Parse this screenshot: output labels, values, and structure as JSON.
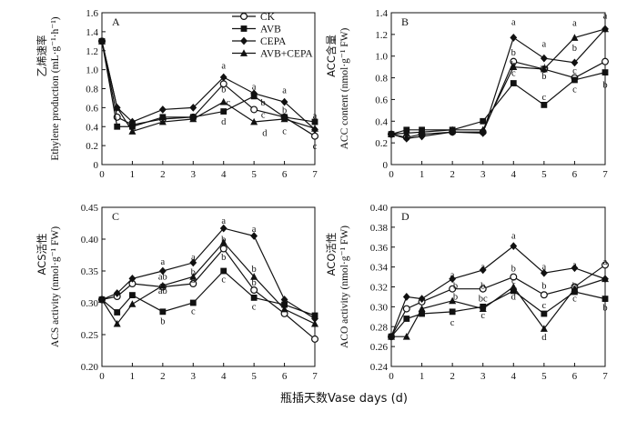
{
  "figure": {
    "x_axis_label": "瓶插天数Vase days (d)",
    "legend": [
      {
        "name": "CK",
        "marker": "circle-open"
      },
      {
        "name": "AVB",
        "marker": "square"
      },
      {
        "name": "CEPA",
        "marker": "diamond"
      },
      {
        "name": "AVB+CEPA",
        "marker": "triangle"
      }
    ]
  },
  "chart_data": [
    {
      "type": "line",
      "panel": "A",
      "ylabel_cn": "乙烯速率",
      "ylabel": "Ethylene production (mL·g⁻¹·h⁻¹)",
      "x": [
        0,
        0.5,
        1,
        2,
        3,
        4,
        5,
        6,
        7
      ],
      "xticks": [
        0,
        1,
        2,
        3,
        4,
        5,
        6,
        7
      ],
      "ylim": [
        0,
        1.6
      ],
      "yticks": [
        "0",
        "0.2",
        "0.4",
        "0.6",
        "0.8",
        "1.0",
        "1.2",
        "1.4",
        "1.6"
      ],
      "series": [
        {
          "name": "CK",
          "values": [
            1.3,
            0.5,
            0.42,
            0.48,
            0.5,
            0.85,
            0.58,
            0.5,
            0.3
          ]
        },
        {
          "name": "AVB",
          "values": [
            1.3,
            0.4,
            0.4,
            0.5,
            0.5,
            0.56,
            0.72,
            0.5,
            0.45
          ]
        },
        {
          "name": "CEPA",
          "values": [
            1.3,
            0.6,
            0.45,
            0.58,
            0.6,
            0.92,
            0.75,
            0.66,
            0.37
          ]
        },
        {
          "name": "AVB+CEPA",
          "values": [
            1.3,
            0.6,
            0.35,
            0.45,
            0.48,
            0.66,
            0.45,
            0.48,
            0.38
          ]
        }
      ],
      "annotations": [
        {
          "x": 4,
          "y": 1.05,
          "text": "a"
        },
        {
          "x": 4,
          "y": 0.8,
          "text": "b"
        },
        {
          "x": 4.15,
          "y": 0.66,
          "text": "c"
        },
        {
          "x": 4,
          "y": 0.46,
          "text": "d"
        },
        {
          "x": 5.3,
          "y": 0.66,
          "text": "b"
        },
        {
          "x": 5,
          "y": 0.83,
          "text": "a"
        },
        {
          "x": 5.3,
          "y": 0.53,
          "text": "c"
        },
        {
          "x": 5.35,
          "y": 0.34,
          "text": "d"
        },
        {
          "x": 6,
          "y": 0.79,
          "text": "a"
        },
        {
          "x": 6,
          "y": 0.58,
          "text": "b"
        },
        {
          "x": 6,
          "y": 0.36,
          "text": "c"
        },
        {
          "x": 7,
          "y": 0.52,
          "text": "a"
        },
        {
          "x": 7,
          "y": 0.2,
          "text": "c"
        }
      ]
    },
    {
      "type": "line",
      "panel": "B",
      "ylabel_cn": "ACC含量",
      "ylabel": "ACC content (nmol·g⁻¹ FW)",
      "x": [
        0,
        0.5,
        1,
        2,
        3,
        4,
        5,
        6,
        7
      ],
      "xticks": [
        0,
        1,
        2,
        3,
        4,
        5,
        6,
        7
      ],
      "ylim": [
        0,
        1.4
      ],
      "yticks": [
        "0",
        "0.2",
        "0.4",
        "0.6",
        "0.8",
        "1.0",
        "1.2",
        "1.4"
      ],
      "series": [
        {
          "name": "CK",
          "values": [
            0.28,
            0.25,
            0.28,
            0.3,
            0.3,
            0.95,
            0.88,
            0.8,
            0.95
          ]
        },
        {
          "name": "AVB",
          "values": [
            0.28,
            0.32,
            0.32,
            0.32,
            0.4,
            0.75,
            0.55,
            0.78,
            0.85
          ]
        },
        {
          "name": "CEPA",
          "values": [
            0.28,
            0.24,
            0.26,
            0.3,
            0.29,
            1.17,
            0.98,
            0.94,
            1.25
          ]
        },
        {
          "name": "AVB+CEPA",
          "values": [
            0.28,
            0.29,
            0.3,
            0.32,
            0.32,
            0.9,
            0.88,
            1.17,
            1.25
          ]
        }
      ],
      "annotations": [
        {
          "x": 4,
          "y": 1.32,
          "text": "a"
        },
        {
          "x": 4,
          "y": 1.04,
          "text": "b"
        },
        {
          "x": 4,
          "y": 0.93,
          "text": "b"
        },
        {
          "x": 4,
          "y": 0.85,
          "text": "c"
        },
        {
          "x": 5,
          "y": 1.12,
          "text": "a"
        },
        {
          "x": 5,
          "y": 0.9,
          "text": "ab"
        },
        {
          "x": 5,
          "y": 0.82,
          "text": "b"
        },
        {
          "x": 5,
          "y": 0.63,
          "text": "c"
        },
        {
          "x": 6,
          "y": 1.31,
          "text": "a"
        },
        {
          "x": 6,
          "y": 1.08,
          "text": "b"
        },
        {
          "x": 6,
          "y": 0.87,
          "text": "c"
        },
        {
          "x": 6,
          "y": 0.7,
          "text": "c"
        },
        {
          "x": 7,
          "y": 1.38,
          "text": "a"
        },
        {
          "x": 7,
          "y": 0.74,
          "text": "b"
        }
      ]
    },
    {
      "type": "line",
      "panel": "C",
      "ylabel_cn": "ACS活性",
      "ylabel": "ACS activity (nmol·g⁻¹ FW)",
      "x": [
        0,
        0.5,
        1,
        2,
        3,
        4,
        5,
        6,
        7
      ],
      "xticks": [
        0,
        1,
        2,
        3,
        4,
        5,
        6,
        7
      ],
      "ylim": [
        0.2,
        0.45
      ],
      "yticks": [
        "0.20",
        "0.25",
        "0.30",
        "0.35",
        "0.40",
        "0.45"
      ],
      "series": [
        {
          "name": "CK",
          "values": [
            0.305,
            0.31,
            0.33,
            0.325,
            0.33,
            0.385,
            0.32,
            0.283,
            0.243
          ]
        },
        {
          "name": "AVB",
          "values": [
            0.305,
            0.285,
            0.312,
            0.286,
            0.3,
            0.35,
            0.308,
            0.297,
            0.28
          ]
        },
        {
          "name": "CEPA",
          "values": [
            0.305,
            0.315,
            0.338,
            0.35,
            0.363,
            0.417,
            0.405,
            0.305,
            0.275
          ]
        },
        {
          "name": "AVB+CEPA",
          "values": [
            0.305,
            0.267,
            0.298,
            0.327,
            0.341,
            0.395,
            0.341,
            0.29,
            0.267
          ]
        }
      ],
      "annotations": [
        {
          "x": 2,
          "y": 0.366,
          "text": "a"
        },
        {
          "x": 2,
          "y": 0.342,
          "text": "ab"
        },
        {
          "x": 2,
          "y": 0.32,
          "text": "ab"
        },
        {
          "x": 2,
          "y": 0.272,
          "text": "b"
        },
        {
          "x": 3,
          "y": 0.373,
          "text": "a"
        },
        {
          "x": 3,
          "y": 0.349,
          "text": "b"
        },
        {
          "x": 3,
          "y": 0.337,
          "text": "b"
        },
        {
          "x": 3,
          "y": 0.288,
          "text": "c"
        },
        {
          "x": 4,
          "y": 0.43,
          "text": "a"
        },
        {
          "x": 4,
          "y": 0.401,
          "text": "b"
        },
        {
          "x": 4,
          "y": 0.373,
          "text": "b"
        },
        {
          "x": 4,
          "y": 0.338,
          "text": "c"
        },
        {
          "x": 5,
          "y": 0.417,
          "text": "a"
        },
        {
          "x": 5,
          "y": 0.354,
          "text": "b"
        },
        {
          "x": 5,
          "y": 0.333,
          "text": "b"
        },
        {
          "x": 5,
          "y": 0.295,
          "text": "c"
        }
      ]
    },
    {
      "type": "line",
      "panel": "D",
      "ylabel_cn": "ACO活性",
      "ylabel": "ACO activity (nmol·g⁻¹ FW)",
      "x": [
        0,
        0.5,
        1,
        2,
        3,
        4,
        5,
        6,
        7
      ],
      "xticks": [
        0,
        1,
        2,
        3,
        4,
        5,
        6,
        7
      ],
      "ylim": [
        0.24,
        0.4
      ],
      "yticks": [
        "0.24",
        "0.26",
        "0.28",
        "0.30",
        "0.32",
        "0.34",
        "0.36",
        "0.38",
        "0.40"
      ],
      "series": [
        {
          "name": "CK",
          "values": [
            0.27,
            0.298,
            0.305,
            0.318,
            0.318,
            0.33,
            0.312,
            0.32,
            0.342
          ]
        },
        {
          "name": "AVB",
          "values": [
            0.27,
            0.288,
            0.293,
            0.295,
            0.3,
            0.316,
            0.293,
            0.315,
            0.308
          ]
        },
        {
          "name": "CEPA",
          "values": [
            0.27,
            0.31,
            0.308,
            0.328,
            0.337,
            0.361,
            0.334,
            0.339,
            0.328
          ]
        },
        {
          "name": "AVB+CEPA",
          "values": [
            0.27,
            0.27,
            0.298,
            0.306,
            0.298,
            0.32,
            0.278,
            0.318,
            0.328
          ]
        }
      ],
      "annotations": [
        {
          "x": 2,
          "y": 0.333,
          "text": "a"
        },
        {
          "x": 2.1,
          "y": 0.322,
          "text": "b"
        },
        {
          "x": 2.1,
          "y": 0.311,
          "text": "b"
        },
        {
          "x": 2,
          "y": 0.285,
          "text": "c"
        },
        {
          "x": 3,
          "y": 0.341,
          "text": "a"
        },
        {
          "x": 3,
          "y": 0.322,
          "text": "b"
        },
        {
          "x": 3,
          "y": 0.309,
          "text": "bc"
        },
        {
          "x": 3,
          "y": 0.292,
          "text": "c"
        },
        {
          "x": 4,
          "y": 0.372,
          "text": "a"
        },
        {
          "x": 4,
          "y": 0.339,
          "text": "b"
        },
        {
          "x": 4,
          "y": 0.327,
          "text": "c"
        },
        {
          "x": 4,
          "y": 0.311,
          "text": "d"
        },
        {
          "x": 5,
          "y": 0.341,
          "text": "a"
        },
        {
          "x": 5,
          "y": 0.322,
          "text": "b"
        },
        {
          "x": 5,
          "y": 0.302,
          "text": "c"
        },
        {
          "x": 5,
          "y": 0.27,
          "text": "d"
        },
        {
          "x": 6,
          "y": 0.343,
          "text": "a"
        },
        {
          "x": 6,
          "y": 0.322,
          "text": "b"
        },
        {
          "x": 6,
          "y": 0.309,
          "text": "c"
        },
        {
          "x": 7,
          "y": 0.346,
          "text": "a"
        },
        {
          "x": 7,
          "y": 0.3,
          "text": "b"
        }
      ]
    }
  ]
}
